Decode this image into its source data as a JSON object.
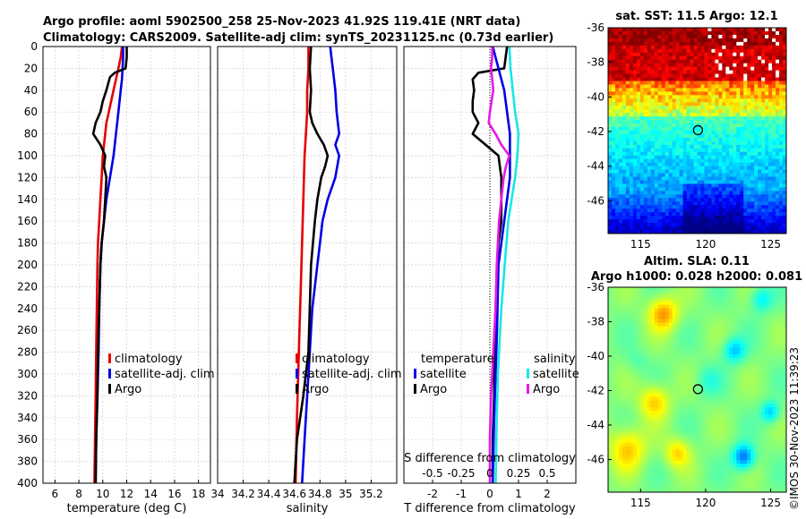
{
  "figure": {
    "title_line1": "Argo profile: aoml 5902500_258 25-Nov-2023 41.92S 119.41E (NRT data)",
    "title_line2": "Climatology: CARS2009. Satellite-adj clim: synTS_20231125.nc (0.73d earlier)",
    "watermark": "©IMOS 30-Nov-2023 11:39:23"
  },
  "colors": {
    "climatology": "#e60000",
    "satellite": "#0000e6",
    "argo": "#000000",
    "sal_diff_argo": "#e619e6",
    "sal_diff_sat": "#19e6e6",
    "grid": "#d0d0d0"
  },
  "chart_data": [
    {
      "name": "temperature",
      "type": "line",
      "xlabel": "temperature (deg C)",
      "xlim": [
        5,
        19
      ],
      "xticks": [
        "6",
        "8",
        "10",
        "12",
        "14",
        "16",
        "18"
      ],
      "xtick_values": [
        6,
        8,
        10,
        12,
        14,
        16,
        18
      ],
      "ylim": [
        400,
        0
      ],
      "yticks": [
        "0",
        "20",
        "40",
        "60",
        "80",
        "100",
        "120",
        "140",
        "160",
        "180",
        "200",
        "220",
        "240",
        "260",
        "280",
        "300",
        "320",
        "340",
        "360",
        "380",
        "400"
      ],
      "ytick_values": [
        0,
        20,
        40,
        60,
        80,
        100,
        120,
        140,
        160,
        180,
        200,
        220,
        240,
        260,
        280,
        300,
        320,
        340,
        360,
        380,
        400
      ],
      "legend": [
        "climatology",
        "satellite-adj. clim",
        "Argo"
      ],
      "series": [
        {
          "name": "climatology",
          "color": "#e60000",
          "depth": [
            0,
            10,
            20,
            30,
            40,
            50,
            60,
            70,
            80,
            100,
            120,
            140,
            160,
            180,
            200,
            240,
            280,
            320,
            360,
            400
          ],
          "values": [
            11.6,
            11.5,
            11.3,
            11.1,
            10.9,
            10.7,
            10.5,
            10.3,
            10.2,
            10.0,
            9.9,
            9.8,
            9.7,
            9.6,
            9.55,
            9.5,
            9.45,
            9.4,
            9.35,
            9.3
          ]
        },
        {
          "name": "satellite-adj. clim",
          "color": "#0000e6",
          "depth": [
            0,
            10,
            20,
            30,
            40,
            60,
            80,
            100,
            120,
            140,
            160,
            180,
            200,
            240,
            280,
            320,
            360,
            400
          ],
          "values": [
            11.7,
            11.7,
            11.65,
            11.6,
            11.5,
            11.3,
            11.1,
            10.9,
            10.6,
            10.3,
            10.1,
            9.9,
            9.8,
            9.7,
            9.65,
            9.55,
            9.45,
            9.4
          ]
        },
        {
          "name": "Argo",
          "color": "#000000",
          "depth": [
            0,
            10,
            20,
            24,
            28,
            40,
            50,
            60,
            70,
            80,
            90,
            100,
            110,
            120,
            140,
            160,
            180,
            200,
            240,
            280,
            320,
            360,
            400
          ],
          "values": [
            12.0,
            12.0,
            11.9,
            11.0,
            10.6,
            10.3,
            10.0,
            9.8,
            9.4,
            9.2,
            9.8,
            10.2,
            10.1,
            10.3,
            10.2,
            10.1,
            9.9,
            9.8,
            9.7,
            9.6,
            9.55,
            9.45,
            9.4
          ]
        }
      ]
    },
    {
      "name": "salinity",
      "type": "line",
      "xlabel": "salinity",
      "xlim": [
        34.0,
        35.4
      ],
      "xticks": [
        "34",
        "34.2",
        "34.4",
        "34.6",
        "34.8",
        "35",
        "35.2"
      ],
      "xtick_values": [
        34.0,
        34.2,
        34.4,
        34.6,
        34.8,
        35.0,
        35.2
      ],
      "ylim": [
        400,
        0
      ],
      "legend": [
        "climatology",
        "satellite-adj. clim",
        "Argo"
      ],
      "series": [
        {
          "name": "climatology",
          "color": "#e60000",
          "depth": [
            0,
            20,
            40,
            60,
            80,
            100,
            140,
            180,
            220,
            260,
            300,
            340,
            400
          ],
          "values": [
            34.71,
            34.71,
            34.7,
            34.7,
            34.69,
            34.68,
            34.67,
            34.66,
            34.65,
            34.64,
            34.63,
            34.62,
            34.61
          ]
        },
        {
          "name": "satellite-adj. clim",
          "color": "#0000e6",
          "depth": [
            0,
            10,
            20,
            30,
            40,
            60,
            80,
            90,
            100,
            120,
            140,
            160,
            180,
            200,
            220,
            240,
            280,
            320,
            360,
            400
          ],
          "values": [
            34.88,
            34.89,
            34.9,
            34.91,
            34.92,
            34.93,
            34.95,
            34.92,
            34.95,
            34.92,
            34.86,
            34.82,
            34.8,
            34.78,
            34.76,
            34.74,
            34.72,
            34.7,
            34.68,
            34.66
          ]
        },
        {
          "name": "Argo",
          "color": "#000000",
          "depth": [
            0,
            20,
            40,
            60,
            70,
            80,
            90,
            100,
            110,
            120,
            140,
            160,
            200,
            240,
            280,
            320,
            360,
            400
          ],
          "values": [
            34.73,
            34.72,
            34.73,
            34.72,
            34.74,
            34.78,
            34.83,
            34.86,
            34.84,
            34.81,
            34.78,
            34.76,
            34.73,
            34.72,
            34.71,
            34.67,
            34.62,
            34.6
          ]
        }
      ]
    },
    {
      "name": "difference",
      "type": "line",
      "xlabel": "T difference from climatology",
      "xlim": [
        -3,
        3
      ],
      "xticks": [
        "-2",
        "-1",
        "0",
        "1",
        "2"
      ],
      "xtick_values": [
        -2,
        -1,
        0,
        1,
        2
      ],
      "s_axis_label": "S difference from climatology",
      "s_xlim": [
        -0.75,
        0.75
      ],
      "s_xticks": [
        "-0.5",
        "-0.25",
        "0",
        "0.25",
        "0.5"
      ],
      "s_xtick_values": [
        -0.5,
        -0.25,
        0,
        0.25,
        0.5
      ],
      "ylim": [
        400,
        0
      ],
      "legend_temperature_title": "temperature",
      "legend_salinity_title": "salinity",
      "legend_temperature": [
        "satellite",
        "Argo"
      ],
      "legend_salinity": [
        "satellite",
        "Argo"
      ],
      "series": [
        {
          "name": "T Argo",
          "color": "#000000",
          "axis": "T",
          "depth": [
            0,
            10,
            20,
            24,
            30,
            40,
            50,
            60,
            70,
            80,
            90,
            100,
            120,
            140,
            160,
            180,
            200,
            240,
            280,
            320,
            360,
            400
          ],
          "values": [
            0.6,
            0.55,
            0.5,
            -0.4,
            -0.6,
            -0.55,
            -0.6,
            -0.6,
            -0.4,
            -0.6,
            -0.15,
            0.3,
            0.4,
            0.4,
            0.4,
            0.3,
            0.25,
            0.2,
            0.15,
            0.15,
            0.1,
            0.1
          ]
        },
        {
          "name": "T satellite",
          "color": "#0000e6",
          "axis": "T",
          "depth": [
            0,
            40,
            80,
            120,
            160,
            200,
            260,
            300,
            340,
            400
          ],
          "values": [
            0.1,
            0.5,
            0.7,
            0.7,
            0.5,
            0.3,
            0.25,
            0.2,
            0.15,
            0.1
          ]
        },
        {
          "name": "S satellite",
          "color": "#19e6e6",
          "axis": "S",
          "depth": [
            0,
            20,
            40,
            60,
            80,
            100,
            120,
            140,
            160,
            200,
            240,
            280,
            300,
            340,
            400
          ],
          "values": [
            0.17,
            0.18,
            0.2,
            0.22,
            0.25,
            0.24,
            0.22,
            0.19,
            0.16,
            0.13,
            0.1,
            0.08,
            0.07,
            0.06,
            0.05
          ]
        },
        {
          "name": "S Argo",
          "color": "#e619e6",
          "axis": "S",
          "depth": [
            0,
            10,
            20,
            30,
            40,
            60,
            70,
            80,
            90,
            100,
            110,
            120,
            140,
            160,
            200,
            240,
            280,
            320,
            360,
            400
          ],
          "values": [
            0.02,
            0.02,
            0.01,
            0.02,
            0.03,
            0.0,
            -0.01,
            0.05,
            0.1,
            0.17,
            0.14,
            0.12,
            0.1,
            0.08,
            0.06,
            0.05,
            0.03,
            0.01,
            0.0,
            0.0
          ]
        }
      ]
    },
    {
      "name": "sst_map",
      "type": "heatmap",
      "title": "sat. SST: 11.5 Argo: 12.1",
      "xlim": [
        112.5,
        126.2
      ],
      "ylim": [
        -47.9,
        -36.0
      ],
      "xticks": [
        "115",
        "120",
        "125"
      ],
      "xtick_values": [
        115,
        120,
        125
      ],
      "yticks": [
        "-36",
        "-38",
        "-40",
        "-42",
        "-44",
        "-46"
      ],
      "ytick_values": [
        -36,
        -38,
        -40,
        -42,
        -44,
        -46
      ],
      "marker": {
        "lon": 119.41,
        "lat": -41.92
      }
    },
    {
      "name": "sla_map",
      "type": "heatmap",
      "title_line1": "Altim. SLA: 0.11",
      "title_line2": "Argo h1000: 0.028 h2000: 0.081",
      "xlim": [
        112.5,
        126.2
      ],
      "ylim": [
        -47.9,
        -36.0
      ],
      "xticks": [
        "115",
        "120",
        "125"
      ],
      "xtick_values": [
        115,
        120,
        125
      ],
      "yticks": [
        "-36",
        "-38",
        "-40",
        "-42",
        "-44",
        "-46"
      ],
      "ytick_values": [
        -36,
        -38,
        -40,
        -42,
        -44,
        -46
      ],
      "marker": {
        "lon": 119.41,
        "lat": -41.92
      }
    }
  ]
}
